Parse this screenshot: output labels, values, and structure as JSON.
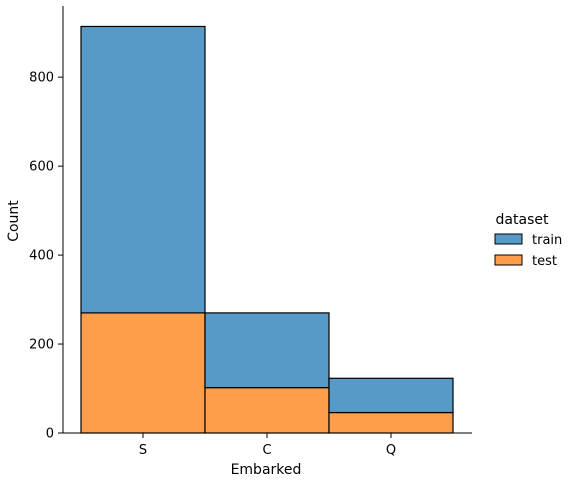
{
  "chart_data": {
    "type": "bar",
    "stacked": true,
    "categories": [
      "S",
      "C",
      "Q"
    ],
    "series": [
      {
        "name": "test",
        "values": [
          270,
          102,
          46
        ],
        "color": "#ff9e4a"
      },
      {
        "name": "train",
        "values": [
          644,
          168,
          77
        ],
        "color": "#5799c7"
      }
    ],
    "xlabel": "Embarked",
    "ylabel": "Count",
    "ylim": [
      0,
      960
    ],
    "yticks": [
      0,
      200,
      400,
      600,
      800
    ],
    "grid": false,
    "legend": {
      "title": "dataset",
      "placement": "right",
      "order": [
        "train",
        "test"
      ]
    }
  }
}
